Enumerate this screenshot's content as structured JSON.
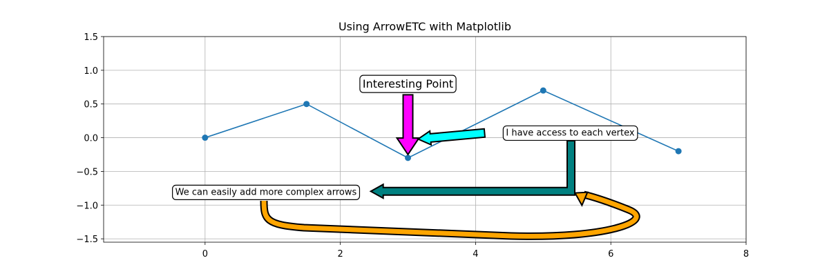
{
  "chart_data": {
    "type": "line",
    "title": "Using ArrowETC with Matplotlib",
    "xlabel": "",
    "ylabel": "",
    "xlim": [
      -1.5,
      8
    ],
    "ylim": [
      -1.55,
      1.5
    ],
    "x_ticks": [
      0,
      2,
      4,
      6,
      8
    ],
    "y_ticks": [
      -1.5,
      -1.0,
      -0.5,
      0.0,
      0.5,
      1.0,
      1.5
    ],
    "x_tick_labels": [
      "0",
      "2",
      "4",
      "6",
      "8"
    ],
    "y_tick_labels": [
      "−1.5",
      "−1.0",
      "−0.5",
      "0.0",
      "0.5",
      "1.0",
      "1.5"
    ],
    "grid": true,
    "series": [
      {
        "x": [
          0,
          1.5,
          3,
          5,
          7
        ],
        "y": [
          0,
          0.5,
          -0.3,
          0.7,
          -0.2
        ],
        "color": "#1f77b4",
        "marker": "circle"
      }
    ],
    "annotations": [
      {
        "text": "Interesting Point",
        "box_x": 3,
        "box_y": 0.8,
        "font_size": 16,
        "arrow_color": "#ff00ff",
        "arrow_tip": [
          3,
          -0.25
        ]
      },
      {
        "text": "I have access to each vertex",
        "box_x": 5.4,
        "box_y": 0.08,
        "font_size": 13,
        "arrow_color": "#00ffff",
        "arrow_tip": [
          3.15,
          -0.02
        ]
      },
      {
        "text": "We can easily add more complex arrows",
        "box_x": 0.9,
        "box_y": -0.8,
        "font_size": 13,
        "arrow_color": "#008080",
        "arrow_tip": [
          2.45,
          -0.8
        ]
      }
    ],
    "curved_arrow": {
      "color": "#ffa500",
      "from": [
        0.9,
        -0.95
      ],
      "to": [
        5.45,
        -0.83
      ]
    }
  }
}
